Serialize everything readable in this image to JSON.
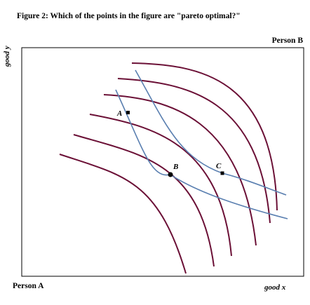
{
  "figure": {
    "title": "Figure 2: Which of the points in the figure are \"pareto optimal?\"",
    "person_b_label": "Person B",
    "person_a_label": "Person A",
    "x_axis_label": "good x",
    "y_axis_label": "good y"
  },
  "points": [
    {
      "id": "A",
      "label": "A"
    },
    {
      "id": "B",
      "label": "B"
    },
    {
      "id": "C",
      "label": "C"
    }
  ],
  "colors": {
    "person_a_curves": "#6b1036",
    "person_b_curves": "#5a7fb0",
    "box": "#000000",
    "points": "#000000"
  }
}
